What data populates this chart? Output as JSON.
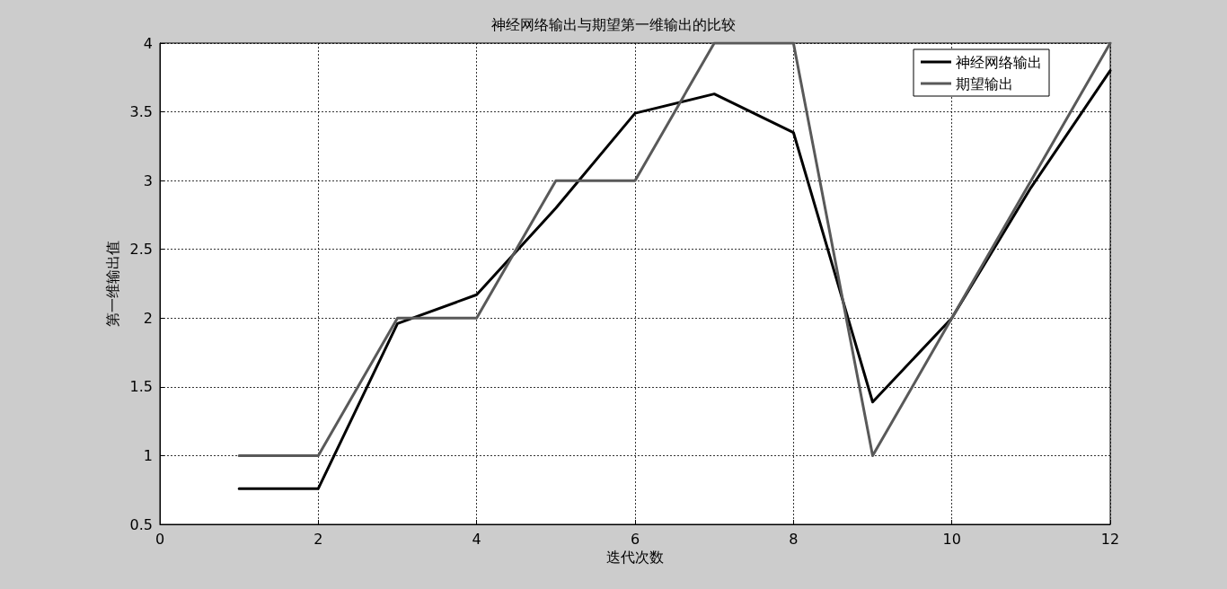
{
  "chart_data": {
    "type": "line",
    "title": "神经网络输出与期望第一维输出的比较",
    "xlabel": "迭代次数",
    "ylabel": "第一维输出值",
    "x": [
      1,
      2,
      3,
      4,
      5,
      6,
      7,
      8,
      9,
      10,
      11,
      12
    ],
    "series": [
      {
        "name": "神经网络输出",
        "color": "#000000",
        "values": [
          0.76,
          0.76,
          1.96,
          2.17,
          2.8,
          3.49,
          3.63,
          3.35,
          1.39,
          2.0,
          2.95,
          3.8
        ]
      },
      {
        "name": "期望输出",
        "color": "#595959",
        "values": [
          1,
          1,
          2,
          2,
          3,
          3,
          4,
          4,
          1,
          2,
          3,
          4
        ]
      }
    ],
    "xlim": [
      0,
      12
    ],
    "xticks": [
      0,
      2,
      4,
      6,
      8,
      10,
      12
    ],
    "ylim": [
      0.5,
      4
    ],
    "yticks": [
      0.5,
      1,
      1.5,
      2,
      2.5,
      3,
      3.5,
      4
    ],
    "grid": true,
    "legend": "top right",
    "marker": "none",
    "line_style": "solid"
  }
}
